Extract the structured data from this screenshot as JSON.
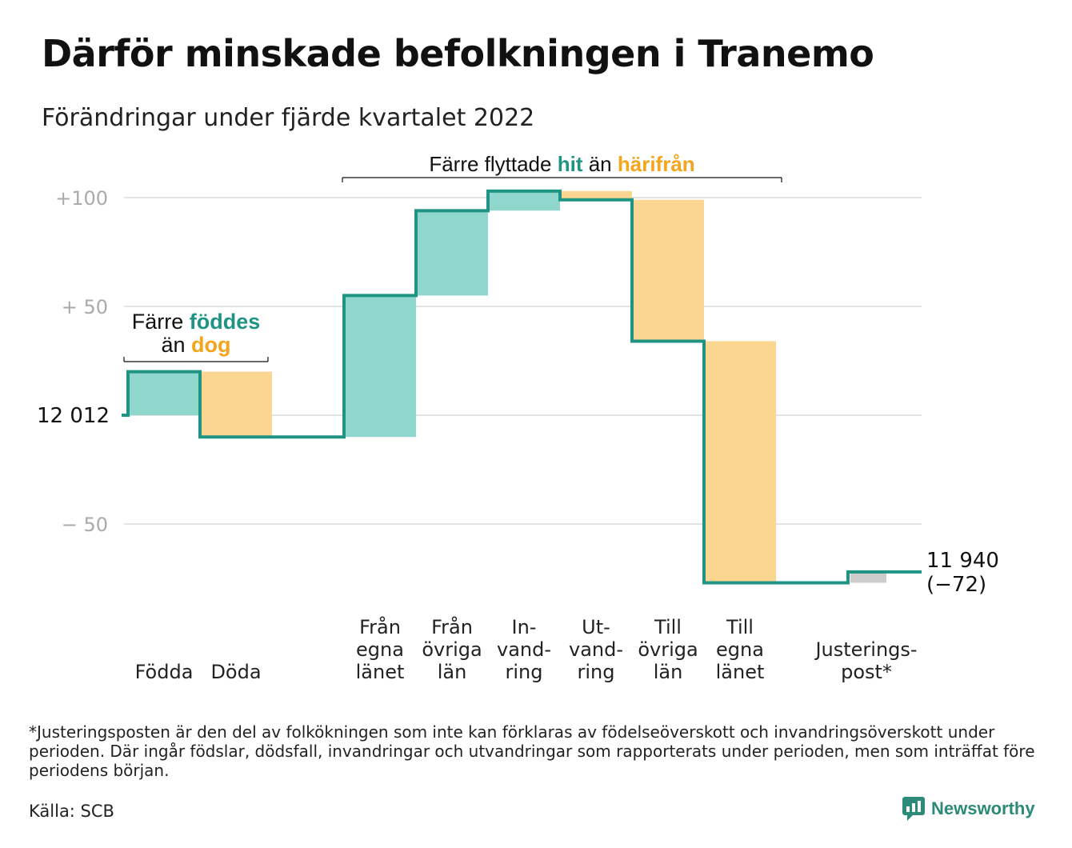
{
  "title": "Därför minskade befolkningen i Tranemo",
  "subtitle": "Förändringar under fjärde kvartalet 2022",
  "chart_data": {
    "type": "waterfall",
    "start_value": 12012,
    "start_label": "12 012",
    "end_label_value": "11 940",
    "end_label_change": "(−72)",
    "ylim_relative": [
      -75,
      105
    ],
    "y_ticks": [
      {
        "value": 100,
        "label": "+100"
      },
      {
        "value": 50,
        "label": "+ 50"
      },
      {
        "value": 0,
        "label": ""
      },
      {
        "value": -50,
        "label": "− 50"
      }
    ],
    "steps": [
      {
        "category": "Födda",
        "label_lines": [
          "Födda"
        ],
        "change": 20,
        "kind": "positive"
      },
      {
        "category": "Döda",
        "label_lines": [
          "Döda"
        ],
        "change": -30,
        "kind": "negative"
      },
      {
        "category": "gap",
        "label_lines": [],
        "change": 0,
        "kind": "none"
      },
      {
        "category": "Från egna länet",
        "label_lines": [
          "Från",
          "egna",
          "länet"
        ],
        "change": 65,
        "kind": "positive"
      },
      {
        "category": "Från övriga län",
        "label_lines": [
          "Från",
          "övriga",
          "län"
        ],
        "change": 39,
        "kind": "positive"
      },
      {
        "category": "Invandring",
        "label_lines": [
          "In-",
          "vand-",
          "ring"
        ],
        "change": 9,
        "kind": "positive"
      },
      {
        "category": "Utvandring",
        "label_lines": [
          "Ut-",
          "vand-",
          "ring"
        ],
        "change": -4,
        "kind": "negative"
      },
      {
        "category": "Till övriga län",
        "label_lines": [
          "Till",
          "övriga",
          "län"
        ],
        "change": -65,
        "kind": "negative"
      },
      {
        "category": "Till egna länet",
        "label_lines": [
          "Till",
          "egna",
          "länet"
        ],
        "change": -111,
        "kind": "negative"
      },
      {
        "category": "gap",
        "label_lines": [],
        "change": 0,
        "kind": "none"
      },
      {
        "category": "Justeringspost*",
        "label_lines": [
          "Justerings-",
          "post*"
        ],
        "change": 5,
        "kind": "adjustment"
      }
    ],
    "annotations": [
      {
        "id": "births",
        "parts": [
          [
            "Färre ",
            "plain"
          ],
          [
            "föddes",
            "teal"
          ]
        ],
        "parts2": [
          [
            "än ",
            "plain"
          ],
          [
            "dog",
            "orange"
          ]
        ]
      },
      {
        "id": "moves",
        "parts": [
          [
            "Färre flyttade ",
            "plain"
          ],
          [
            "hit",
            "teal"
          ],
          [
            " än ",
            "plain"
          ],
          [
            "härifrån",
            "orange"
          ]
        ]
      }
    ],
    "colors": {
      "line": "#1f9484",
      "positive": "#8fd6cc",
      "negative": "#fad691",
      "adjustment": "#cccccc",
      "teal_text": "#1f9484",
      "orange_text": "#f4a51c",
      "grid": "#e3e3e3",
      "tick": "#aaaaaa"
    }
  },
  "footnote": "*Justeringsposten är den del av folkökningen som inte kan förklaras av födelseöverskott och invandringsöverskott under perioden. Där ingår födslar, dödsfall, invandringar och utvandringar som rapporterats under perioden, men som inträffat före periodens början.",
  "source": "Källa: SCB",
  "brand": {
    "name": "Newsworthy",
    "icon": "newsworthy-logo-icon"
  }
}
